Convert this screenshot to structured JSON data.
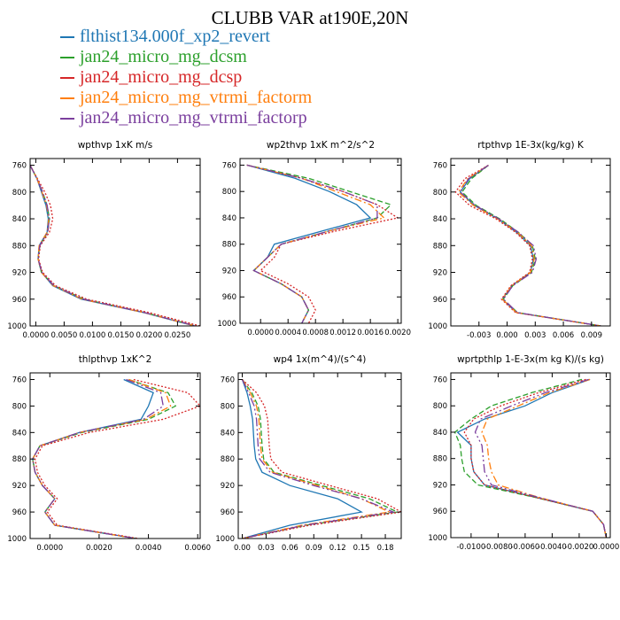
{
  "figure": {
    "title": "CLUBB VAR at190E,20N"
  },
  "legend": [
    {
      "label": "flthist134.000f_xp2_revert",
      "color": "#1f77b4"
    },
    {
      "label": "jan24_micro_mg_dcsm",
      "color": "#2ca02c"
    },
    {
      "label": "jan24_micro_mg_dcsp",
      "color": "#d62728"
    },
    {
      "label": "jan24_micro_mg_vtrmi_factorm",
      "color": "#ff7f0e"
    },
    {
      "label": "jan24_micro_mg_vtrmi_factorp",
      "color": "#7b3f9e"
    }
  ],
  "chart_data": [
    {
      "type": "line",
      "title": "wpthvp   1xK m/s",
      "ylim": [
        1000,
        750
      ],
      "yticks": [
        760,
        800,
        840,
        880,
        920,
        960,
        1000
      ],
      "xlim": [
        -0.001,
        0.029
      ],
      "xticks": [
        0.0,
        0.005,
        0.01,
        0.015,
        0.02,
        0.025
      ],
      "xticklabels": [
        "0.0000",
        "0.0050",
        "0.0100",
        "0.0150",
        "0.0200",
        "0.0250"
      ],
      "y": [
        760,
        780,
        800,
        820,
        840,
        860,
        880,
        900,
        920,
        940,
        960,
        980,
        1000
      ],
      "series": [
        {
          "values": [
            -0.001,
            0.0002,
            0.001,
            0.0018,
            0.0022,
            0.002,
            0.0006,
            0.0004,
            0.001,
            0.003,
            0.008,
            0.019,
            0.028
          ]
        },
        {
          "values": [
            -0.001,
            0.0002,
            0.0012,
            0.002,
            0.0024,
            0.0021,
            0.0007,
            0.0004,
            0.001,
            0.0032,
            0.0085,
            0.0192,
            0.0282
          ]
        },
        {
          "values": [
            -0.001,
            0.0003,
            0.0016,
            0.0026,
            0.003,
            0.0024,
            0.0008,
            0.0005,
            0.0012,
            0.0035,
            0.009,
            0.02,
            0.029
          ]
        },
        {
          "values": [
            -0.001,
            0.0002,
            0.0011,
            0.0019,
            0.0023,
            0.002,
            0.0006,
            0.0004,
            0.001,
            0.0031,
            0.0082,
            0.0191,
            0.0281
          ]
        },
        {
          "values": [
            -0.001,
            0.0002,
            0.0012,
            0.002,
            0.0024,
            0.0021,
            0.0007,
            0.0004,
            0.0011,
            0.0032,
            0.0084,
            0.0192,
            0.0282
          ]
        }
      ]
    },
    {
      "type": "line",
      "title": "wp2thvp   1xK m^2/s^2",
      "ylim": [
        1000,
        750
      ],
      "yticks": [
        760,
        800,
        840,
        880,
        920,
        960,
        1000
      ],
      "xlim": [
        -0.0003,
        0.00205
      ],
      "xticks": [
        0.0,
        0.0004,
        0.0008,
        0.0012,
        0.0016,
        0.002
      ],
      "xticklabels": [
        "0.0000",
        "0.0004",
        "0.0008",
        "0.0012",
        "0.0016",
        "0.0020"
      ],
      "y": [
        760,
        780,
        800,
        820,
        840,
        860,
        880,
        900,
        920,
        940,
        960,
        980,
        1000
      ],
      "series": [
        {
          "values": [
            -0.0002,
            0.0005,
            0.001,
            0.0014,
            0.0016,
            0.0009,
            0.0002,
            0.0001,
            -0.0001,
            0.0003,
            0.0006,
            0.0007,
            0.0006
          ]
        },
        {
          "values": [
            -0.0002,
            0.0007,
            0.0013,
            0.0019,
            0.0017,
            0.001,
            0.0003,
            0.0001,
            -0.0001,
            0.0003,
            0.0006,
            0.0007,
            0.0006
          ]
        },
        {
          "values": [
            -0.0002,
            0.0006,
            0.0012,
            0.0017,
            0.002,
            0.0011,
            0.0003,
            0.0002,
            0.0,
            0.0004,
            0.0007,
            0.0008,
            0.0007
          ]
        },
        {
          "values": [
            -0.0002,
            0.0006,
            0.0011,
            0.0016,
            0.0018,
            0.001,
            0.0003,
            0.0001,
            -0.0001,
            0.0003,
            0.0006,
            0.0007,
            0.0006
          ]
        },
        {
          "values": [
            -0.0002,
            0.0006,
            0.0012,
            0.0017,
            0.0017,
            0.001,
            0.0003,
            0.0001,
            -0.0001,
            0.0003,
            0.0006,
            0.0007,
            0.0006
          ]
        }
      ]
    },
    {
      "type": "line",
      "title": "rtpthvp   1E-3x(kg/kg) K",
      "ylim": [
        1000,
        750
      ],
      "yticks": [
        760,
        800,
        840,
        880,
        920,
        960,
        1000
      ],
      "xlim": [
        -0.006,
        0.011
      ],
      "xticks": [
        -0.003,
        0.0,
        0.003,
        0.006,
        0.009
      ],
      "xticklabels": [
        "-0.003",
        "0.000",
        "0.003",
        "0.006",
        "0.009"
      ],
      "y": [
        760,
        780,
        800,
        820,
        840,
        860,
        880,
        900,
        920,
        940,
        960,
        980,
        1000
      ],
      "series": [
        {
          "values": [
            -0.002,
            -0.004,
            -0.005,
            -0.0035,
            -0.001,
            0.001,
            0.0025,
            0.0028,
            0.0025,
            0.0005,
            -0.0005,
            0.001,
            0.01
          ]
        },
        {
          "values": [
            -0.002,
            -0.0038,
            -0.0048,
            -0.0033,
            -0.0008,
            0.0012,
            0.0027,
            0.003,
            0.0026,
            0.0006,
            -0.0004,
            0.0011,
            0.01
          ]
        },
        {
          "values": [
            -0.002,
            -0.0045,
            -0.0055,
            -0.004,
            -0.0012,
            0.0009,
            0.0024,
            0.0027,
            0.0024,
            0.0004,
            -0.0006,
            0.0009,
            0.01
          ]
        },
        {
          "values": [
            -0.002,
            -0.0042,
            -0.0052,
            -0.0036,
            -0.001,
            0.0011,
            0.0026,
            0.0029,
            0.0025,
            0.0005,
            -0.0005,
            0.001,
            0.01
          ]
        },
        {
          "values": [
            -0.002,
            -0.0041,
            -0.005,
            -0.0034,
            -0.0009,
            0.0012,
            0.0028,
            0.0031,
            0.0027,
            0.0006,
            -0.0004,
            0.0011,
            0.01
          ]
        }
      ]
    },
    {
      "type": "line",
      "title": "thlpthvp   1xK^2",
      "ylim": [
        1000,
        750
      ],
      "yticks": [
        760,
        800,
        840,
        880,
        920,
        960,
        1000
      ],
      "xlim": [
        -0.0008,
        0.0061
      ],
      "xticks": [
        0.0,
        0.002,
        0.004,
        0.006
      ],
      "xticklabels": [
        "0.0000",
        "0.0020",
        "0.0040",
        "0.0060"
      ],
      "y": [
        760,
        780,
        800,
        820,
        840,
        860,
        880,
        900,
        920,
        940,
        960,
        980,
        1000
      ],
      "series": [
        {
          "values": [
            0.003,
            0.0042,
            0.004,
            0.0037,
            0.0012,
            -0.0004,
            -0.0007,
            -0.0006,
            -0.0003,
            0.0002,
            -0.0002,
            0.0002,
            0.0035
          ]
        },
        {
          "values": [
            0.0032,
            0.0048,
            0.0051,
            0.004,
            0.0013,
            -0.0004,
            -0.0007,
            -0.0006,
            -0.0003,
            0.0002,
            -0.0002,
            0.0002,
            0.0035
          ]
        },
        {
          "values": [
            0.0034,
            0.0056,
            0.0061,
            0.0046,
            0.0016,
            -0.0003,
            -0.0006,
            -0.0005,
            -0.0002,
            0.0003,
            -0.0001,
            0.0003,
            0.0036
          ]
        },
        {
          "values": [
            0.0032,
            0.0047,
            0.0049,
            0.0039,
            0.0012,
            -0.0004,
            -0.0007,
            -0.0006,
            -0.0003,
            0.0002,
            -0.0002,
            0.0002,
            0.0035
          ]
        },
        {
          "values": [
            0.0031,
            0.0045,
            0.0046,
            0.0038,
            0.0012,
            -0.0004,
            -0.0007,
            -0.0006,
            -0.0003,
            0.0002,
            -0.0002,
            0.0002,
            0.0035
          ]
        }
      ]
    },
    {
      "type": "line",
      "title": "wp4   1x(m^4)/(s^4)",
      "ylim": [
        1000,
        750
      ],
      "yticks": [
        760,
        800,
        840,
        880,
        920,
        960,
        1000
      ],
      "xlim": [
        -0.005,
        0.2
      ],
      "xticks": [
        0.0,
        0.03,
        0.06,
        0.09,
        0.12,
        0.15,
        0.18
      ],
      "xticklabels": [
        "0.00",
        "0.03",
        "0.06",
        "0.09",
        "0.12",
        "0.15",
        "0.18"
      ],
      "y": [
        760,
        780,
        800,
        820,
        840,
        860,
        880,
        900,
        920,
        940,
        960,
        980,
        1000
      ],
      "series": [
        {
          "values": [
            0.0,
            0.006,
            0.01,
            0.013,
            0.014,
            0.015,
            0.017,
            0.025,
            0.06,
            0.12,
            0.15,
            0.06,
            0.0
          ]
        },
        {
          "values": [
            0.0,
            0.012,
            0.02,
            0.023,
            0.024,
            0.025,
            0.027,
            0.04,
            0.1,
            0.16,
            0.195,
            0.08,
            0.0
          ]
        },
        {
          "values": [
            0.0,
            0.018,
            0.028,
            0.032,
            0.033,
            0.034,
            0.036,
            0.05,
            0.11,
            0.17,
            0.2,
            0.085,
            0.0
          ]
        },
        {
          "values": [
            0.0,
            0.01,
            0.018,
            0.021,
            0.022,
            0.023,
            0.025,
            0.038,
            0.095,
            0.15,
            0.185,
            0.075,
            0.0
          ]
        },
        {
          "values": [
            0.0,
            0.008,
            0.015,
            0.018,
            0.019,
            0.02,
            0.022,
            0.035,
            0.09,
            0.15,
            0.19,
            0.078,
            0.0
          ]
        }
      ]
    },
    {
      "type": "line",
      "title": "wprtpthlp   1-E-3x(m kg K)/(s kg)",
      "ylim": [
        1000,
        750
      ],
      "yticks": [
        760,
        800,
        840,
        880,
        920,
        960,
        1000
      ],
      "xlim": [
        -0.0115,
        0.0003
      ],
      "xticks": [
        -0.01,
        -0.008,
        -0.006,
        -0.004,
        -0.002,
        0.0
      ],
      "xticklabels": [
        "-0.0100",
        "-0.0080",
        "-0.0060",
        "-0.0040",
        "-0.0020",
        "0.0000"
      ],
      "y": [
        760,
        780,
        800,
        820,
        840,
        860,
        880,
        900,
        920,
        940,
        960,
        980,
        1000
      ],
      "series": [
        {
          "values": [
            -0.0012,
            -0.004,
            -0.006,
            -0.009,
            -0.011,
            -0.01,
            -0.01,
            -0.0098,
            -0.009,
            -0.005,
            -0.001,
            -0.0002,
            0.0
          ]
        },
        {
          "values": [
            -0.0018,
            -0.0055,
            -0.0085,
            -0.01,
            -0.0112,
            -0.0108,
            -0.0107,
            -0.0105,
            -0.0095,
            -0.005,
            -0.001,
            -0.0002,
            0.0
          ]
        },
        {
          "values": [
            -0.0015,
            -0.005,
            -0.0078,
            -0.0098,
            -0.0105,
            -0.01,
            -0.01,
            -0.0098,
            -0.009,
            -0.005,
            -0.001,
            -0.0002,
            0.0
          ]
        },
        {
          "values": [
            -0.0012,
            -0.0042,
            -0.0065,
            -0.0088,
            -0.0092,
            -0.0088,
            -0.0087,
            -0.0085,
            -0.008,
            -0.0048,
            -0.001,
            -0.0002,
            0.0
          ]
        },
        {
          "values": [
            -0.0013,
            -0.0045,
            -0.007,
            -0.0093,
            -0.0097,
            -0.0092,
            -0.0091,
            -0.009,
            -0.0085,
            -0.0048,
            -0.001,
            -0.0002,
            0.0
          ]
        }
      ]
    }
  ]
}
